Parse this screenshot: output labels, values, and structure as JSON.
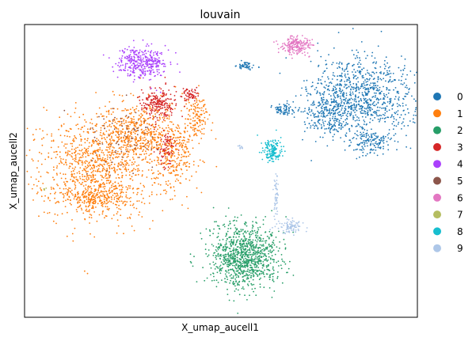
{
  "chart_data": {
    "type": "scatter",
    "title": "louvain",
    "xlabel": "X_umap_aucell1",
    "ylabel": "X_umap_aucell2",
    "xticks": [],
    "yticks": [],
    "grid": false,
    "legend_position": "right",
    "xlim": [
      0,
      100
    ],
    "ylim": [
      0,
      100
    ],
    "series": [
      {
        "name": "0",
        "color": "#1f77b4",
        "clusters": [
          {
            "cx": 86,
            "cy": 75,
            "rx": 12,
            "ry": 13,
            "n": 900
          },
          {
            "cx": 78,
            "cy": 70,
            "rx": 6,
            "ry": 8,
            "n": 250
          },
          {
            "cx": 88,
            "cy": 60,
            "rx": 4,
            "ry": 4,
            "n": 120
          },
          {
            "cx": 66,
            "cy": 71,
            "rx": 2.5,
            "ry": 1.8,
            "n": 70
          },
          {
            "cx": 56,
            "cy": 86,
            "rx": 2,
            "ry": 1.3,
            "n": 50
          }
        ]
      },
      {
        "name": "1",
        "color": "#ff7f0e",
        "clusters": [
          {
            "cx": 18,
            "cy": 51,
            "rx": 13,
            "ry": 16,
            "n": 900
          },
          {
            "cx": 28,
            "cy": 63,
            "rx": 9,
            "ry": 9,
            "n": 500
          },
          {
            "cx": 38,
            "cy": 56,
            "rx": 5,
            "ry": 13,
            "n": 300
          },
          {
            "cx": 44,
            "cy": 68,
            "rx": 2.5,
            "ry": 7,
            "n": 120
          },
          {
            "cx": 19,
            "cy": 41,
            "rx": 9,
            "ry": 4,
            "n": 250
          }
        ]
      },
      {
        "name": "2",
        "color": "#279e68",
        "clusters": [
          {
            "cx": 56,
            "cy": 21,
            "rx": 8,
            "ry": 10,
            "n": 1000
          }
        ]
      },
      {
        "name": "3",
        "color": "#d62728",
        "clusters": [
          {
            "cx": 34,
            "cy": 73,
            "rx": 4,
            "ry": 4.5,
            "n": 220
          },
          {
            "cx": 42,
            "cy": 76,
            "rx": 2,
            "ry": 2,
            "n": 60
          },
          {
            "cx": 36,
            "cy": 57,
            "rx": 2,
            "ry": 6,
            "n": 80
          }
        ]
      },
      {
        "name": "4",
        "color": "#aa40fc",
        "clusters": [
          {
            "cx": 30,
            "cy": 87,
            "rx": 6,
            "ry": 5,
            "n": 350
          }
        ]
      },
      {
        "name": "5",
        "color": "#8c564b",
        "clusters": [
          {
            "cx": 25,
            "cy": 62,
            "rx": 10,
            "ry": 11,
            "n": 80
          }
        ]
      },
      {
        "name": "6",
        "color": "#e377c2",
        "clusters": [
          {
            "cx": 69,
            "cy": 93,
            "rx": 3.5,
            "ry": 3,
            "n": 200
          }
        ]
      },
      {
        "name": "7",
        "color": "#b5bd61",
        "clusters": [
          {
            "cx": 5,
            "cy": 44,
            "rx": 0.5,
            "ry": 0.5,
            "n": 4
          }
        ]
      },
      {
        "name": "8",
        "color": "#17becf",
        "clusters": [
          {
            "cx": 63,
            "cy": 57,
            "rx": 2.2,
            "ry": 3.5,
            "n": 160
          }
        ]
      },
      {
        "name": "9",
        "color": "#aec7e8",
        "clusters": [
          {
            "cx": 68,
            "cy": 31,
            "rx": 3,
            "ry": 2,
            "n": 90
          },
          {
            "cx": 64,
            "cy": 41,
            "rx": 0.6,
            "ry": 8,
            "n": 50
          },
          {
            "cx": 55,
            "cy": 58,
            "rx": 0.6,
            "ry": 0.8,
            "n": 10
          }
        ]
      }
    ]
  }
}
